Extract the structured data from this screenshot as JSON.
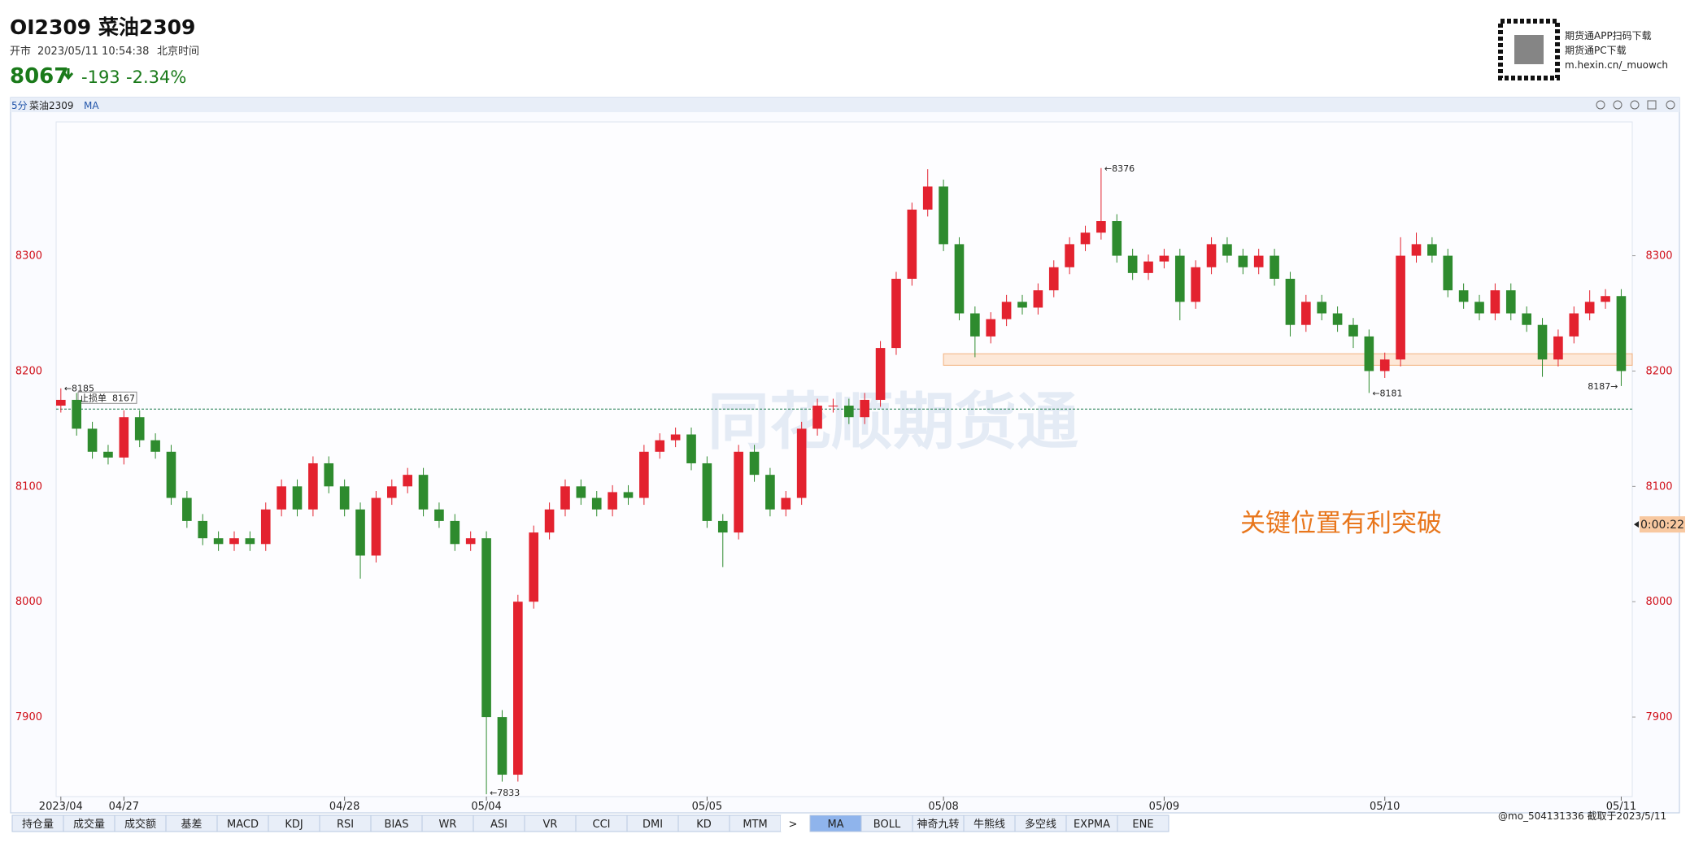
{
  "header": {
    "title": "OI2309 菜油2309",
    "status": "开市",
    "datetime": "2023/05/11 10:54:38",
    "timezone": "北京时间",
    "price": "8067",
    "change": "-193",
    "change_pct": "-2.34%",
    "qr_lines": [
      "期货通APP扫码下载",
      "期货通PC下载",
      "m.hexin.cn/_muowch"
    ]
  },
  "toolbar": {
    "period": "5分",
    "symbol": "菜油2309",
    "indicator": "MA"
  },
  "chart_data": {
    "type": "candlestick",
    "annotation": "关键位置有利突破",
    "watermark": "同花顺期货通",
    "x": [
      0,
      1,
      2,
      3,
      4,
      5,
      6,
      7,
      8,
      9,
      10,
      11,
      12,
      13,
      14,
      15,
      16,
      17,
      18,
      19,
      20,
      21,
      22,
      23,
      24,
      25,
      26,
      27,
      28,
      29,
      30,
      31,
      32,
      33,
      34,
      35,
      36,
      37,
      38,
      39,
      40,
      41,
      42,
      43,
      44,
      45,
      46,
      47,
      48,
      49,
      50,
      51,
      52,
      53,
      54,
      55,
      56,
      57,
      58,
      59,
      60,
      61,
      62,
      63,
      64,
      65,
      66,
      67,
      68,
      69,
      70,
      71,
      72,
      73,
      74,
      75,
      76,
      77,
      78,
      79,
      80,
      81,
      82,
      83,
      84,
      85,
      86,
      87,
      88,
      89,
      90,
      91,
      92,
      93,
      94,
      95,
      96,
      97,
      98,
      99
    ],
    "open": [
      8170,
      8175,
      8150,
      8130,
      8125,
      8160,
      8140,
      8130,
      8090,
      8070,
      8055,
      8050,
      8055,
      8050,
      8080,
      8100,
      8080,
      8120,
      8100,
      8080,
      8040,
      8090,
      8100,
      8110,
      8080,
      8070,
      8050,
      8055,
      7900,
      7850,
      8000,
      8060,
      8080,
      8100,
      8090,
      8080,
      8095,
      8090,
      8130,
      8140,
      8145,
      8120,
      8070,
      8060,
      8130,
      8110,
      8080,
      8090,
      8150,
      8170,
      8170,
      8160,
      8175,
      8220,
      8280,
      8340,
      8360,
      8310,
      8250,
      8230,
      8245,
      8260,
      8255,
      8270,
      8290,
      8310,
      8320,
      8330,
      8300,
      8285,
      8295,
      8300,
      8260,
      8290,
      8310,
      8300,
      8290,
      8300,
      8280,
      8240,
      8260,
      8250,
      8240,
      8230,
      8200,
      8210,
      8300,
      8310,
      8300,
      8270,
      8260,
      8250,
      8270,
      8250,
      8240,
      8210,
      8230,
      8250,
      8260,
      8265
    ],
    "high": [
      8185,
      8181,
      8156,
      8136,
      8166,
      8166,
      8146,
      8136,
      8096,
      8076,
      8061,
      8061,
      8061,
      8086,
      8106,
      8106,
      8126,
      8126,
      8106,
      8086,
      8096,
      8106,
      8116,
      8116,
      8086,
      8076,
      8061,
      8061,
      7906,
      8006,
      8066,
      8086,
      8106,
      8106,
      8096,
      8101,
      8101,
      8136,
      8146,
      8151,
      8151,
      8126,
      8076,
      8136,
      8136,
      8116,
      8096,
      8156,
      8176,
      8176,
      8176,
      8181,
      8226,
      8286,
      8346,
      8375,
      8366,
      8316,
      8256,
      8251,
      8266,
      8266,
      8276,
      8296,
      8316,
      8326,
      8376,
      8336,
      8306,
      8301,
      8306,
      8306,
      8296,
      8316,
      8316,
      8306,
      8306,
      8306,
      8286,
      8266,
      8266,
      8256,
      8246,
      8236,
      8216,
      8316,
      8320,
      8316,
      8306,
      8276,
      8266,
      8276,
      8276,
      8256,
      8246,
      8236,
      8256,
      8270,
      8271,
      8271
    ],
    "low": [
      8164,
      8144,
      8124,
      8119,
      8119,
      8134,
      8124,
      8084,
      8064,
      8049,
      8044,
      8044,
      8044,
      8044,
      8074,
      8074,
      8074,
      8094,
      8074,
      8020,
      8034,
      8084,
      8094,
      8074,
      8064,
      8044,
      8044,
      7833,
      7844,
      7844,
      7994,
      8054,
      8074,
      8084,
      8074,
      8074,
      8084,
      8084,
      8124,
      8134,
      8114,
      8064,
      8030,
      8054,
      8104,
      8074,
      8074,
      8084,
      8144,
      8164,
      8154,
      8154,
      8169,
      8214,
      8274,
      8334,
      8304,
      8244,
      8212,
      8224,
      8239,
      8249,
      8249,
      8264,
      8284,
      8304,
      8314,
      8294,
      8279,
      8279,
      8289,
      8244,
      8254,
      8284,
      8294,
      8284,
      8284,
      8274,
      8230,
      8234,
      8244,
      8234,
      8220,
      8181,
      8194,
      8204,
      8294,
      8294,
      8264,
      8254,
      8244,
      8244,
      8244,
      8234,
      8195,
      8204,
      8224,
      8244,
      8254,
      8187
    ],
    "close": [
      8175,
      8150,
      8130,
      8125,
      8160,
      8140,
      8130,
      8090,
      8070,
      8055,
      8050,
      8055,
      8050,
      8080,
      8100,
      8080,
      8120,
      8100,
      8080,
      8040,
      8090,
      8100,
      8110,
      8080,
      8070,
      8050,
      8055,
      7900,
      7850,
      8000,
      8060,
      8080,
      8100,
      8090,
      8080,
      8095,
      8090,
      8130,
      8140,
      8145,
      8120,
      8070,
      8060,
      8130,
      8110,
      8080,
      8090,
      8150,
      8170,
      8170,
      8160,
      8175,
      8220,
      8280,
      8340,
      8360,
      8310,
      8250,
      8230,
      8245,
      8260,
      8255,
      8270,
      8290,
      8310,
      8320,
      8330,
      8300,
      8285,
      8295,
      8300,
      8260,
      8290,
      8310,
      8300,
      8290,
      8300,
      8280,
      8240,
      8260,
      8250,
      8240,
      8230,
      8200,
      8210,
      8300,
      8310,
      8300,
      8270,
      8260,
      8250,
      8270,
      8250,
      8240,
      8210,
      8230,
      8250,
      8260,
      8265,
      8200
    ],
    "up_color": "#e3222f",
    "down_color": "#2e8b2e",
    "xlim": [
      -0.3,
      99.7
    ],
    "ylim": [
      7831,
      8416
    ],
    "yticks": [
      7900,
      8000,
      8100,
      8200,
      8300
    ],
    "xticks": [
      {
        "value": 0,
        "label": "2023/04"
      },
      {
        "value": 4,
        "label": "04/27"
      },
      {
        "value": 18,
        "label": "04/28"
      },
      {
        "value": 27,
        "label": "05/04"
      },
      {
        "value": 41,
        "label": "05/05"
      },
      {
        "value": 56,
        "label": "05/08"
      },
      {
        "value": 70,
        "label": "05/09"
      },
      {
        "value": 84,
        "label": "05/10"
      },
      {
        "value": 99,
        "label": "05/11"
      }
    ],
    "extremes": [
      {
        "x": 0,
        "value": 8185,
        "label": "←8185"
      },
      {
        "x": 66,
        "value": 8376,
        "label": "←8376"
      },
      {
        "x": 83,
        "value": 8181,
        "label": "←8181"
      },
      {
        "x": 99,
        "value": 8187,
        "label": "8187→"
      },
      {
        "x": 27,
        "value": 7833,
        "label": "←7833"
      }
    ],
    "stop_line": {
      "value": 8167,
      "tag": "止损单",
      "label": "8167"
    },
    "zone": {
      "x": 56,
      "from": 8205,
      "to": 8215
    },
    "countdown": {
      "value": 8067,
      "label": "0:00:22"
    }
  },
  "tabs": [
    "持仓量",
    "成交量",
    "成交额",
    "基差",
    "MACD",
    "KDJ",
    "RSI",
    "BIAS",
    "WR",
    "ASI",
    "VR",
    "CCI",
    "DMI",
    "KD",
    "MTM",
    ">",
    "MA",
    "BOLL",
    "神奇九转",
    "牛熊线",
    "多空线",
    "EXPMA",
    "ENE"
  ],
  "footer": "@mo_504131336 截取于2023/5/11"
}
